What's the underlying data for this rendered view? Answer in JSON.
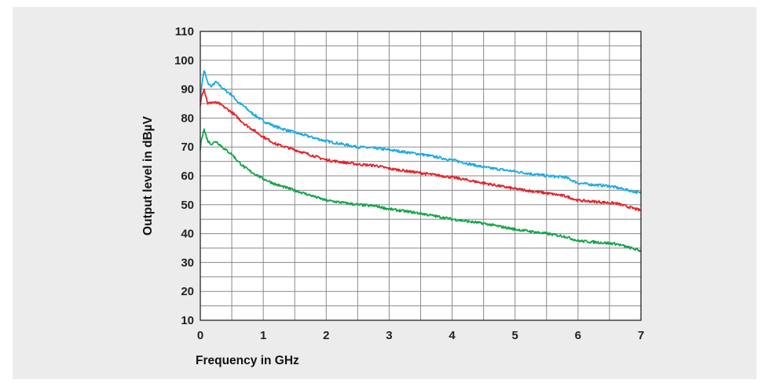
{
  "chart_data": {
    "type": "line",
    "title": "",
    "xlabel": "Frequency in GHz",
    "ylabel": "Output level in dBµV",
    "xlim": [
      0,
      7
    ],
    "ylim": [
      10,
      110
    ],
    "x_ticks": [
      0,
      1,
      2,
      3,
      4,
      5,
      6,
      7
    ],
    "y_ticks": [
      10,
      20,
      30,
      40,
      50,
      60,
      70,
      80,
      90,
      100,
      110
    ],
    "grid": true,
    "legend": "none",
    "series": [
      {
        "color": "#1eaae2",
        "points": [
          [
            0.0,
            86
          ],
          [
            0.02,
            91
          ],
          [
            0.06,
            96.5
          ],
          [
            0.12,
            92
          ],
          [
            0.18,
            91
          ],
          [
            0.25,
            92.5
          ],
          [
            0.3,
            91.5
          ],
          [
            0.4,
            89.5
          ],
          [
            0.5,
            88
          ],
          [
            0.6,
            85.5
          ],
          [
            0.7,
            84
          ],
          [
            0.8,
            82
          ],
          [
            1.0,
            79
          ],
          [
            1.2,
            77
          ],
          [
            1.5,
            75
          ],
          [
            2.0,
            72
          ],
          [
            2.5,
            70
          ],
          [
            2.8,
            69.5
          ],
          [
            3.0,
            69
          ],
          [
            3.5,
            67.5
          ],
          [
            4.0,
            65.5
          ],
          [
            4.5,
            63
          ],
          [
            5.0,
            61.5
          ],
          [
            5.5,
            60
          ],
          [
            5.8,
            59.5
          ],
          [
            6.0,
            57.5
          ],
          [
            6.2,
            57
          ],
          [
            6.5,
            56.5
          ],
          [
            6.7,
            55.5
          ],
          [
            7.0,
            54
          ]
        ]
      },
      {
        "color": "#e1242a",
        "points": [
          [
            0.0,
            84
          ],
          [
            0.02,
            88
          ],
          [
            0.06,
            90
          ],
          [
            0.12,
            85
          ],
          [
            0.2,
            85.5
          ],
          [
            0.3,
            85
          ],
          [
            0.4,
            83.5
          ],
          [
            0.5,
            82
          ],
          [
            0.6,
            80
          ],
          [
            0.7,
            78
          ],
          [
            0.8,
            76.5
          ],
          [
            1.0,
            73.5
          ],
          [
            1.2,
            71
          ],
          [
            1.5,
            69
          ],
          [
            2.0,
            65.5
          ],
          [
            2.5,
            64
          ],
          [
            2.8,
            63.5
          ],
          [
            3.0,
            62.5
          ],
          [
            3.5,
            61
          ],
          [
            4.0,
            59.5
          ],
          [
            4.5,
            57.5
          ],
          [
            5.0,
            55.5
          ],
          [
            5.5,
            54
          ],
          [
            5.8,
            53
          ],
          [
            6.0,
            51.5
          ],
          [
            6.3,
            51
          ],
          [
            6.6,
            50.5
          ],
          [
            7.0,
            48
          ]
        ]
      },
      {
        "color": "#16a34a",
        "points": [
          [
            0.0,
            69
          ],
          [
            0.02,
            73
          ],
          [
            0.06,
            76
          ],
          [
            0.12,
            72
          ],
          [
            0.18,
            71
          ],
          [
            0.25,
            72
          ],
          [
            0.3,
            71
          ],
          [
            0.4,
            69
          ],
          [
            0.5,
            67.5
          ],
          [
            0.6,
            65
          ],
          [
            0.7,
            63
          ],
          [
            0.8,
            61.5
          ],
          [
            1.0,
            59
          ],
          [
            1.2,
            57
          ],
          [
            1.5,
            55
          ],
          [
            2.0,
            51.5
          ],
          [
            2.5,
            50
          ],
          [
            2.8,
            49.5
          ],
          [
            3.0,
            48.5
          ],
          [
            3.5,
            47
          ],
          [
            4.0,
            45
          ],
          [
            4.5,
            43.5
          ],
          [
            5.0,
            41.5
          ],
          [
            5.5,
            40
          ],
          [
            5.8,
            39
          ],
          [
            6.0,
            37.5
          ],
          [
            6.3,
            37
          ],
          [
            6.6,
            36.5
          ],
          [
            7.0,
            34
          ]
        ]
      }
    ]
  }
}
